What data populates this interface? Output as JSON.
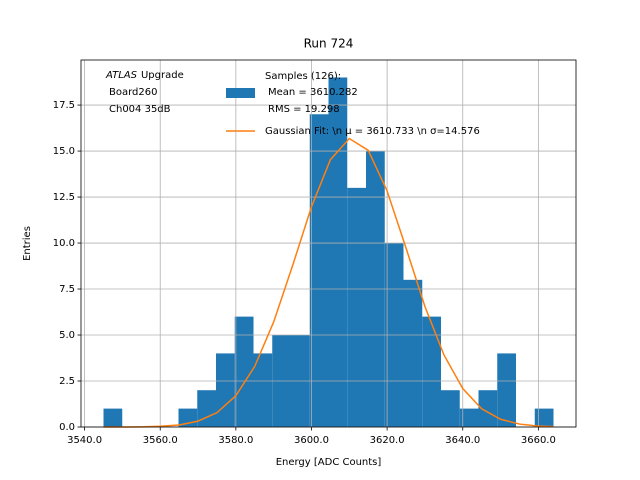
{
  "chart_data": {
    "type": "histogram",
    "title": "Run 724",
    "xlabel": "Energy [ADC Counts]",
    "ylabel": "Entries",
    "annotation": [
      "ATLAS",
      "Upgrade",
      "Board260",
      "Ch004 35dB"
    ],
    "bins": [
      3545,
      3549.958,
      3554.917,
      3559.875,
      3564.833,
      3569.792,
      3574.75,
      3579.708,
      3584.667,
      3589.625,
      3594.583,
      3599.542,
      3604.5,
      3609.458,
      3614.417,
      3619.375,
      3624.333,
      3629.292,
      3634.25,
      3639.208,
      3644.167,
      3649.125,
      3654.083,
      3659.042,
      3664
    ],
    "counts": [
      1,
      0,
      0,
      0,
      1,
      2,
      4,
      6,
      4,
      5,
      5,
      17,
      19,
      13,
      15,
      10,
      8,
      6,
      2,
      1,
      2,
      4,
      0,
      1
    ],
    "color": "#1f77b4",
    "hist_label": [
      "Samples (126):",
      "Mean = 3610.282",
      "RMS = 19.298"
    ],
    "fit": {
      "name": "Gaussian Fit: \\n μ = 3610.733 \\n σ=14.576",
      "color": "#ff7f0e",
      "x": [
        3545,
        3550,
        3555,
        3560,
        3565,
        3570,
        3575,
        3580,
        3585,
        3590,
        3595,
        3600,
        3605,
        3610,
        3615,
        3620,
        3625,
        3630,
        3635,
        3640,
        3645,
        3650,
        3655,
        3660,
        3664
      ],
      "values": [
        0.0,
        0.0,
        0.01,
        0.04,
        0.11,
        0.32,
        0.78,
        1.7,
        3.3,
        5.71,
        8.77,
        11.97,
        14.53,
        15.68,
        15.04,
        12.83,
        9.73,
        6.55,
        3.93,
        2.09,
        0.99,
        0.42,
        0.16,
        0.05,
        0.02
      ]
    },
    "xlim": [
      3539.05,
      3669.95
    ],
    "ylim": [
      0,
      19.95
    ],
    "xticks": [
      {
        "value": 3540,
        "label": "3540.0"
      },
      {
        "value": 3560,
        "label": "3560.0"
      },
      {
        "value": 3580,
        "label": "3580.0"
      },
      {
        "value": 3600,
        "label": "3600.0"
      },
      {
        "value": 3620,
        "label": "3620.0"
      },
      {
        "value": 3640,
        "label": "3640.0"
      },
      {
        "value": 3660,
        "label": "3660.0"
      }
    ],
    "yticks": [
      {
        "value": 0,
        "label": "0.0"
      },
      2.5,
      {
        "value": 5,
        "label": "5.0"
      },
      7.5,
      {
        "value": 10,
        "label": "10.0"
      },
      12.5,
      {
        "value": 15,
        "label": "15.0"
      },
      17.5
    ],
    "grid": true
  }
}
